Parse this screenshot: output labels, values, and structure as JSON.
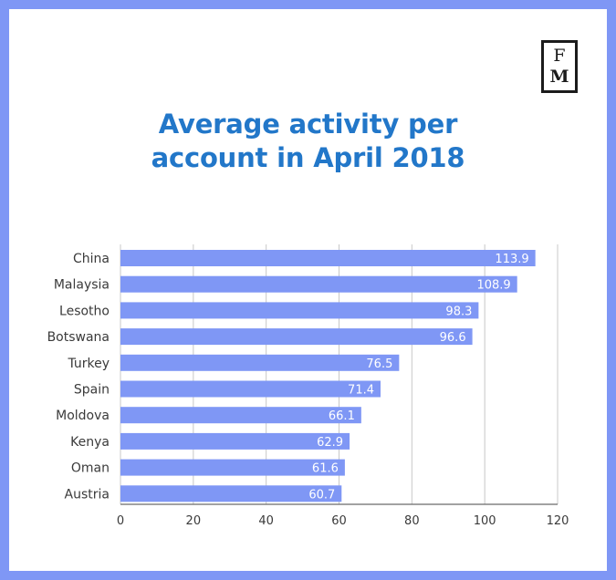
{
  "logo": {
    "line1": "F",
    "line2": "M"
  },
  "chart_data": {
    "type": "bar",
    "orientation": "horizontal",
    "title": "Average activity per account in April 2018",
    "title_lines": [
      "Average activity per",
      "account in April 2018"
    ],
    "categories": [
      "China",
      "Malaysia",
      "Lesotho",
      "Botswana",
      "Turkey",
      "Spain",
      "Moldova",
      "Kenya",
      "Oman",
      "Austria"
    ],
    "values": [
      113.9,
      108.9,
      98.3,
      96.6,
      76.5,
      71.4,
      66.1,
      62.9,
      61.6,
      60.7
    ],
    "value_labels": [
      "113.9",
      "108.9",
      "98.3",
      "96.6",
      "76.5",
      "71.4",
      "66.1",
      "62.9",
      "61.6",
      "60.7"
    ],
    "xticks": [
      0,
      20,
      40,
      60,
      80,
      100,
      120
    ],
    "xlim": [
      0,
      120
    ],
    "xlabel": "",
    "ylabel": "",
    "grid": true,
    "bar_color": "#7f97f5"
  }
}
